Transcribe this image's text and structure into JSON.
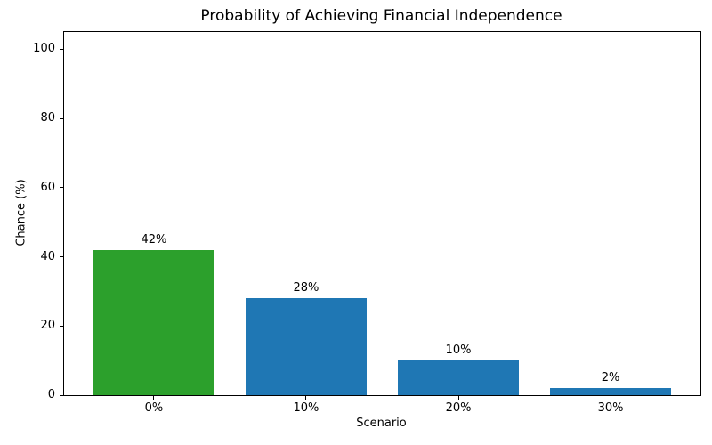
{
  "chart_data": {
    "type": "bar",
    "title": "Probability of Achieving Financial Independence",
    "xlabel": "Scenario",
    "ylabel": "Chance (%)",
    "categories": [
      "0%",
      "10%",
      "20%",
      "30%"
    ],
    "values": [
      42,
      28,
      10,
      2
    ],
    "bar_labels": [
      "42%",
      "28%",
      "10%",
      "2%"
    ],
    "bar_colors": [
      "#2ca02c",
      "#1f77b4",
      "#1f77b4",
      "#1f77b4"
    ],
    "yticks": [
      0,
      20,
      40,
      60,
      80,
      100
    ],
    "ylim": [
      0,
      105
    ],
    "grid": false,
    "legend_position": "none",
    "axis_color": "#000000",
    "background_color": "#ffffff"
  }
}
